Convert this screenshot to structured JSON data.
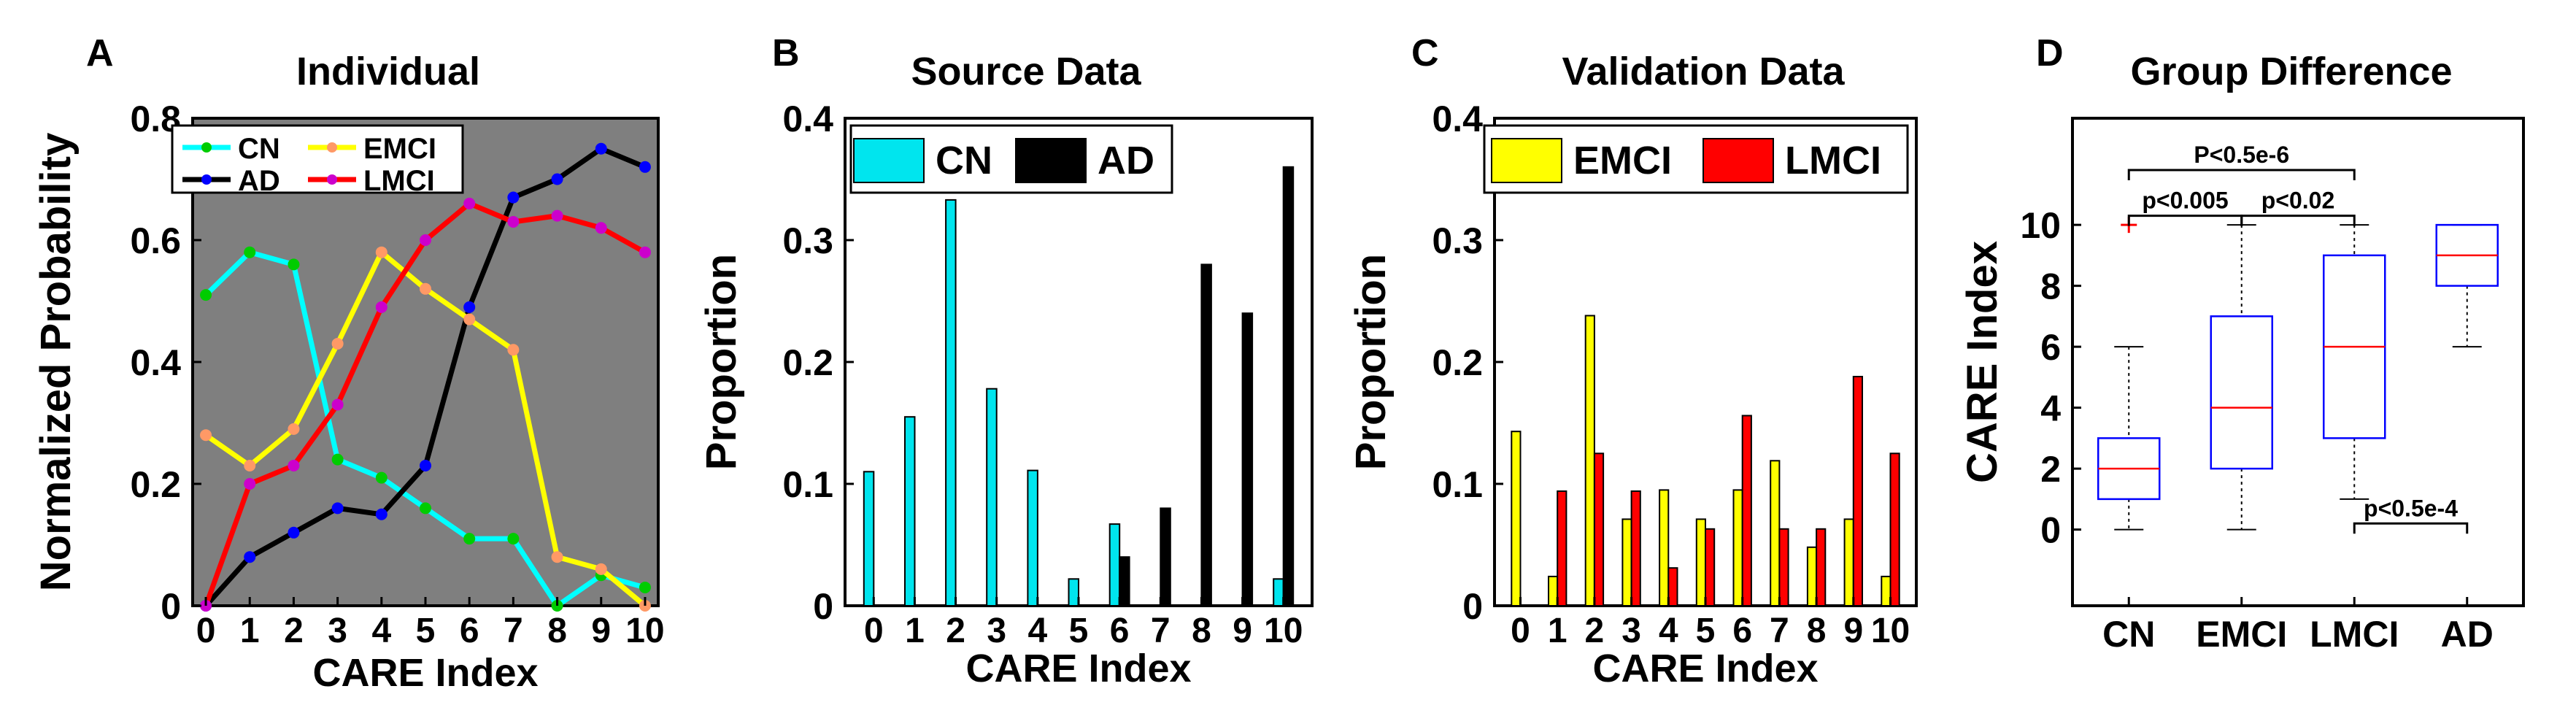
{
  "colors": {
    "cn": "#00FFFF",
    "ad": "#000000",
    "emci": "#FFFF00",
    "lmci": "#FF0000",
    "cn_bar": "#00E5EE",
    "panel_a_bg": "#7F7F7F",
    "box_edge": "#0000FF",
    "median": "#FF0000",
    "outlier": "#FF0000",
    "marker_cn": "#00CC00",
    "marker_ad": "#0000FF",
    "marker_emci": "#FF9966",
    "marker_lmci": "#CC00CC"
  },
  "panels": {
    "a": {
      "letter": "A",
      "title": "Individual"
    },
    "b": {
      "letter": "B",
      "title": "Source Data"
    },
    "c": {
      "letter": "C",
      "title": "Validation Data"
    },
    "d": {
      "letter": "D",
      "title": "Group Difference"
    }
  },
  "chart_data": [
    {
      "panel": "A",
      "type": "line",
      "title": "Individual",
      "xlabel": "CARE Index",
      "ylabel": "Normalized Probability",
      "x": [
        0,
        1,
        2,
        3,
        4,
        5,
        6,
        7,
        8,
        9,
        10
      ],
      "x_tick_labels": [
        "0",
        "1",
        "2",
        "3",
        "4",
        "5",
        "6",
        "7",
        "8",
        "9",
        "10"
      ],
      "y_ticks": [
        0,
        0.2,
        0.4,
        0.6,
        0.8
      ],
      "y_tick_labels": [
        "0",
        "0.2",
        "0.4",
        "0.6",
        "0.8"
      ],
      "xlim": [
        -0.3,
        10.3
      ],
      "ylim": [
        0,
        0.8
      ],
      "legend_position": "top-left",
      "series": [
        {
          "name": "CN",
          "key": "cn",
          "values": [
            0.51,
            0.58,
            0.56,
            0.24,
            0.21,
            0.16,
            0.11,
            0.11,
            0.0,
            0.05,
            0.03
          ]
        },
        {
          "name": "AD",
          "key": "ad",
          "values": [
            0.0,
            0.08,
            0.12,
            0.16,
            0.15,
            0.23,
            0.49,
            0.67,
            0.7,
            0.75,
            0.72
          ]
        },
        {
          "name": "EMCI",
          "key": "emci",
          "values": [
            0.28,
            0.23,
            0.29,
            0.43,
            0.58,
            0.52,
            0.47,
            0.42,
            0.08,
            0.06,
            0.0
          ]
        },
        {
          "name": "LMCI",
          "key": "lmci",
          "values": [
            0.0,
            0.2,
            0.23,
            0.33,
            0.49,
            0.6,
            0.66,
            0.63,
            0.64,
            0.62,
            0.58
          ]
        }
      ]
    },
    {
      "panel": "B",
      "type": "bar",
      "title": "Source Data",
      "xlabel": "CARE Index",
      "ylabel": "Proportion",
      "categories": [
        "0",
        "1",
        "2",
        "3",
        "4",
        "5",
        "6",
        "7",
        "8",
        "9",
        "10"
      ],
      "y_ticks": [
        0,
        0.1,
        0.2,
        0.3,
        0.4
      ],
      "y_tick_labels": [
        "0",
        "0.1",
        "0.2",
        "0.3",
        "0.4"
      ],
      "ylim": [
        0,
        0.4
      ],
      "legend_position": "top-left",
      "series": [
        {
          "name": "CN",
          "key": "cn",
          "values": [
            0.11,
            0.155,
            0.333,
            0.178,
            0.111,
            0.022,
            0.067,
            0.0,
            0.0,
            0.0,
            0.022
          ]
        },
        {
          "name": "AD",
          "key": "ad",
          "values": [
            0.0,
            0.0,
            0.0,
            0.0,
            0.0,
            0.0,
            0.04,
            0.08,
            0.28,
            0.24,
            0.36
          ]
        }
      ]
    },
    {
      "panel": "C",
      "type": "bar",
      "title": "Validation Data",
      "xlabel": "CARE Index",
      "ylabel": "Proportion",
      "categories": [
        "0",
        "1",
        "2",
        "3",
        "4",
        "5",
        "6",
        "7",
        "8",
        "9",
        "10"
      ],
      "y_ticks": [
        0,
        0.1,
        0.2,
        0.3,
        0.4
      ],
      "y_tick_labels": [
        "0",
        "0.1",
        "0.2",
        "0.3",
        "0.4"
      ],
      "ylim": [
        0,
        0.4
      ],
      "legend_position": "top-left",
      "series": [
        {
          "name": "EMCI",
          "key": "emci",
          "values": [
            0.143,
            0.024,
            0.238,
            0.071,
            0.095,
            0.071,
            0.095,
            0.119,
            0.048,
            0.071,
            0.024
          ]
        },
        {
          "name": "LMCI",
          "key": "lmci",
          "values": [
            0.0,
            0.094,
            0.125,
            0.094,
            0.031,
            0.063,
            0.156,
            0.063,
            0.063,
            0.188,
            0.125
          ]
        }
      ]
    },
    {
      "panel": "D",
      "type": "box",
      "title": "Group Difference",
      "ylabel": "CARE Index",
      "categories": [
        "CN",
        "EMCI",
        "LMCI",
        "AD"
      ],
      "y_ticks": [
        0,
        2,
        4,
        6,
        8,
        10
      ],
      "y_tick_labels": [
        "0",
        "2",
        "4",
        "6",
        "8",
        "10"
      ],
      "ylim": [
        -2.5,
        13.5
      ],
      "boxes": [
        {
          "name": "CN",
          "whisker_low": 0,
          "q1": 1,
          "median": 2,
          "q3": 3,
          "whisker_high": 6,
          "outliers": [
            10
          ]
        },
        {
          "name": "EMCI",
          "whisker_low": 0,
          "q1": 2,
          "median": 4,
          "q3": 7,
          "whisker_high": 10,
          "outliers": []
        },
        {
          "name": "LMCI",
          "whisker_low": 1,
          "q1": 3,
          "median": 6,
          "q3": 9,
          "whisker_high": 10,
          "outliers": []
        },
        {
          "name": "AD",
          "whisker_low": 6,
          "q1": 8,
          "median": 9,
          "q3": 10,
          "whisker_high": 10,
          "outliers": []
        }
      ],
      "annotations": [
        {
          "text": "P<0.5e-6",
          "from": "CN",
          "to": "LMCI",
          "y": 11.8,
          "side": "above"
        },
        {
          "text": "p<0.005",
          "from": "CN",
          "to": "EMCI",
          "y": 10.3,
          "side": "above"
        },
        {
          "text": "p<0.02",
          "from": "EMCI",
          "to": "LMCI",
          "y": 10.3,
          "side": "above"
        },
        {
          "text": "p<0.5e-4",
          "from": "LMCI",
          "to": "AD",
          "y": 0.2,
          "side": "above"
        }
      ]
    }
  ]
}
